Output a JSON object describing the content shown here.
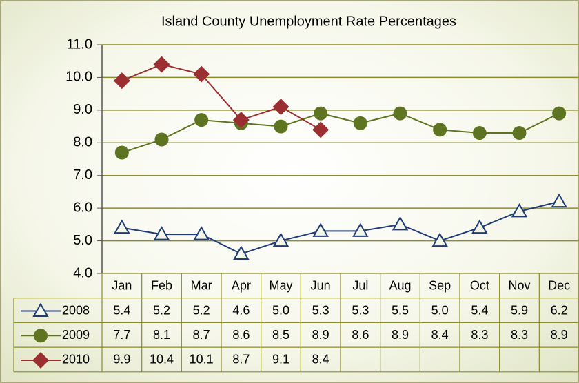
{
  "chart_data": {
    "type": "line",
    "title": "Island County Unemployment Rate Percentages",
    "categories": [
      "Jan",
      "Feb",
      "Mar",
      "Apr",
      "May",
      "Jun",
      "Jul",
      "Aug",
      "Sep",
      "Oct",
      "Nov",
      "Dec"
    ],
    "series": [
      {
        "name": "2008",
        "color": "#1f3b78",
        "marker": "triangle",
        "values": [
          5.4,
          5.2,
          5.2,
          4.6,
          5.0,
          5.3,
          5.3,
          5.5,
          5.0,
          5.4,
          5.9,
          6.2
        ],
        "value_labels": [
          "5.4",
          "5.2",
          "5.2",
          "4.6",
          "5.0",
          "5.3",
          "5.3",
          "5.5",
          "5.0",
          "5.4",
          "5.9",
          "6.2"
        ]
      },
      {
        "name": "2009",
        "color": "#5e7420",
        "marker": "circle",
        "values": [
          7.7,
          8.1,
          8.7,
          8.6,
          8.5,
          8.9,
          8.6,
          8.9,
          8.4,
          8.3,
          8.3,
          8.9
        ],
        "value_labels": [
          "7.7",
          "8.1",
          "8.7",
          "8.6",
          "8.5",
          "8.9",
          "8.6",
          "8.9",
          "8.4",
          "8.3",
          "8.3",
          "8.9"
        ]
      },
      {
        "name": "2010",
        "color": "#9a2e31",
        "marker": "diamond",
        "values": [
          9.9,
          10.4,
          10.1,
          8.7,
          9.1,
          8.4,
          null,
          null,
          null,
          null,
          null,
          null
        ],
        "value_labels": [
          "9.9",
          "10.4",
          "10.1",
          "8.7",
          "9.1",
          "8.4",
          null,
          null,
          null,
          null,
          null,
          null
        ]
      }
    ],
    "ylim": [
      4,
      11
    ],
    "yticks": [
      {
        "value": 4,
        "label": "4.0"
      },
      {
        "value": 5,
        "label": "5.0"
      },
      {
        "value": 6,
        "label": "6.0"
      },
      {
        "value": 7,
        "label": "7.0"
      },
      {
        "value": 8,
        "label": "8.0"
      },
      {
        "value": 9,
        "label": "9.0"
      },
      {
        "value": 10,
        "label": "10.0"
      },
      {
        "value": 11,
        "label": "11.0"
      }
    ],
    "grid": true
  }
}
